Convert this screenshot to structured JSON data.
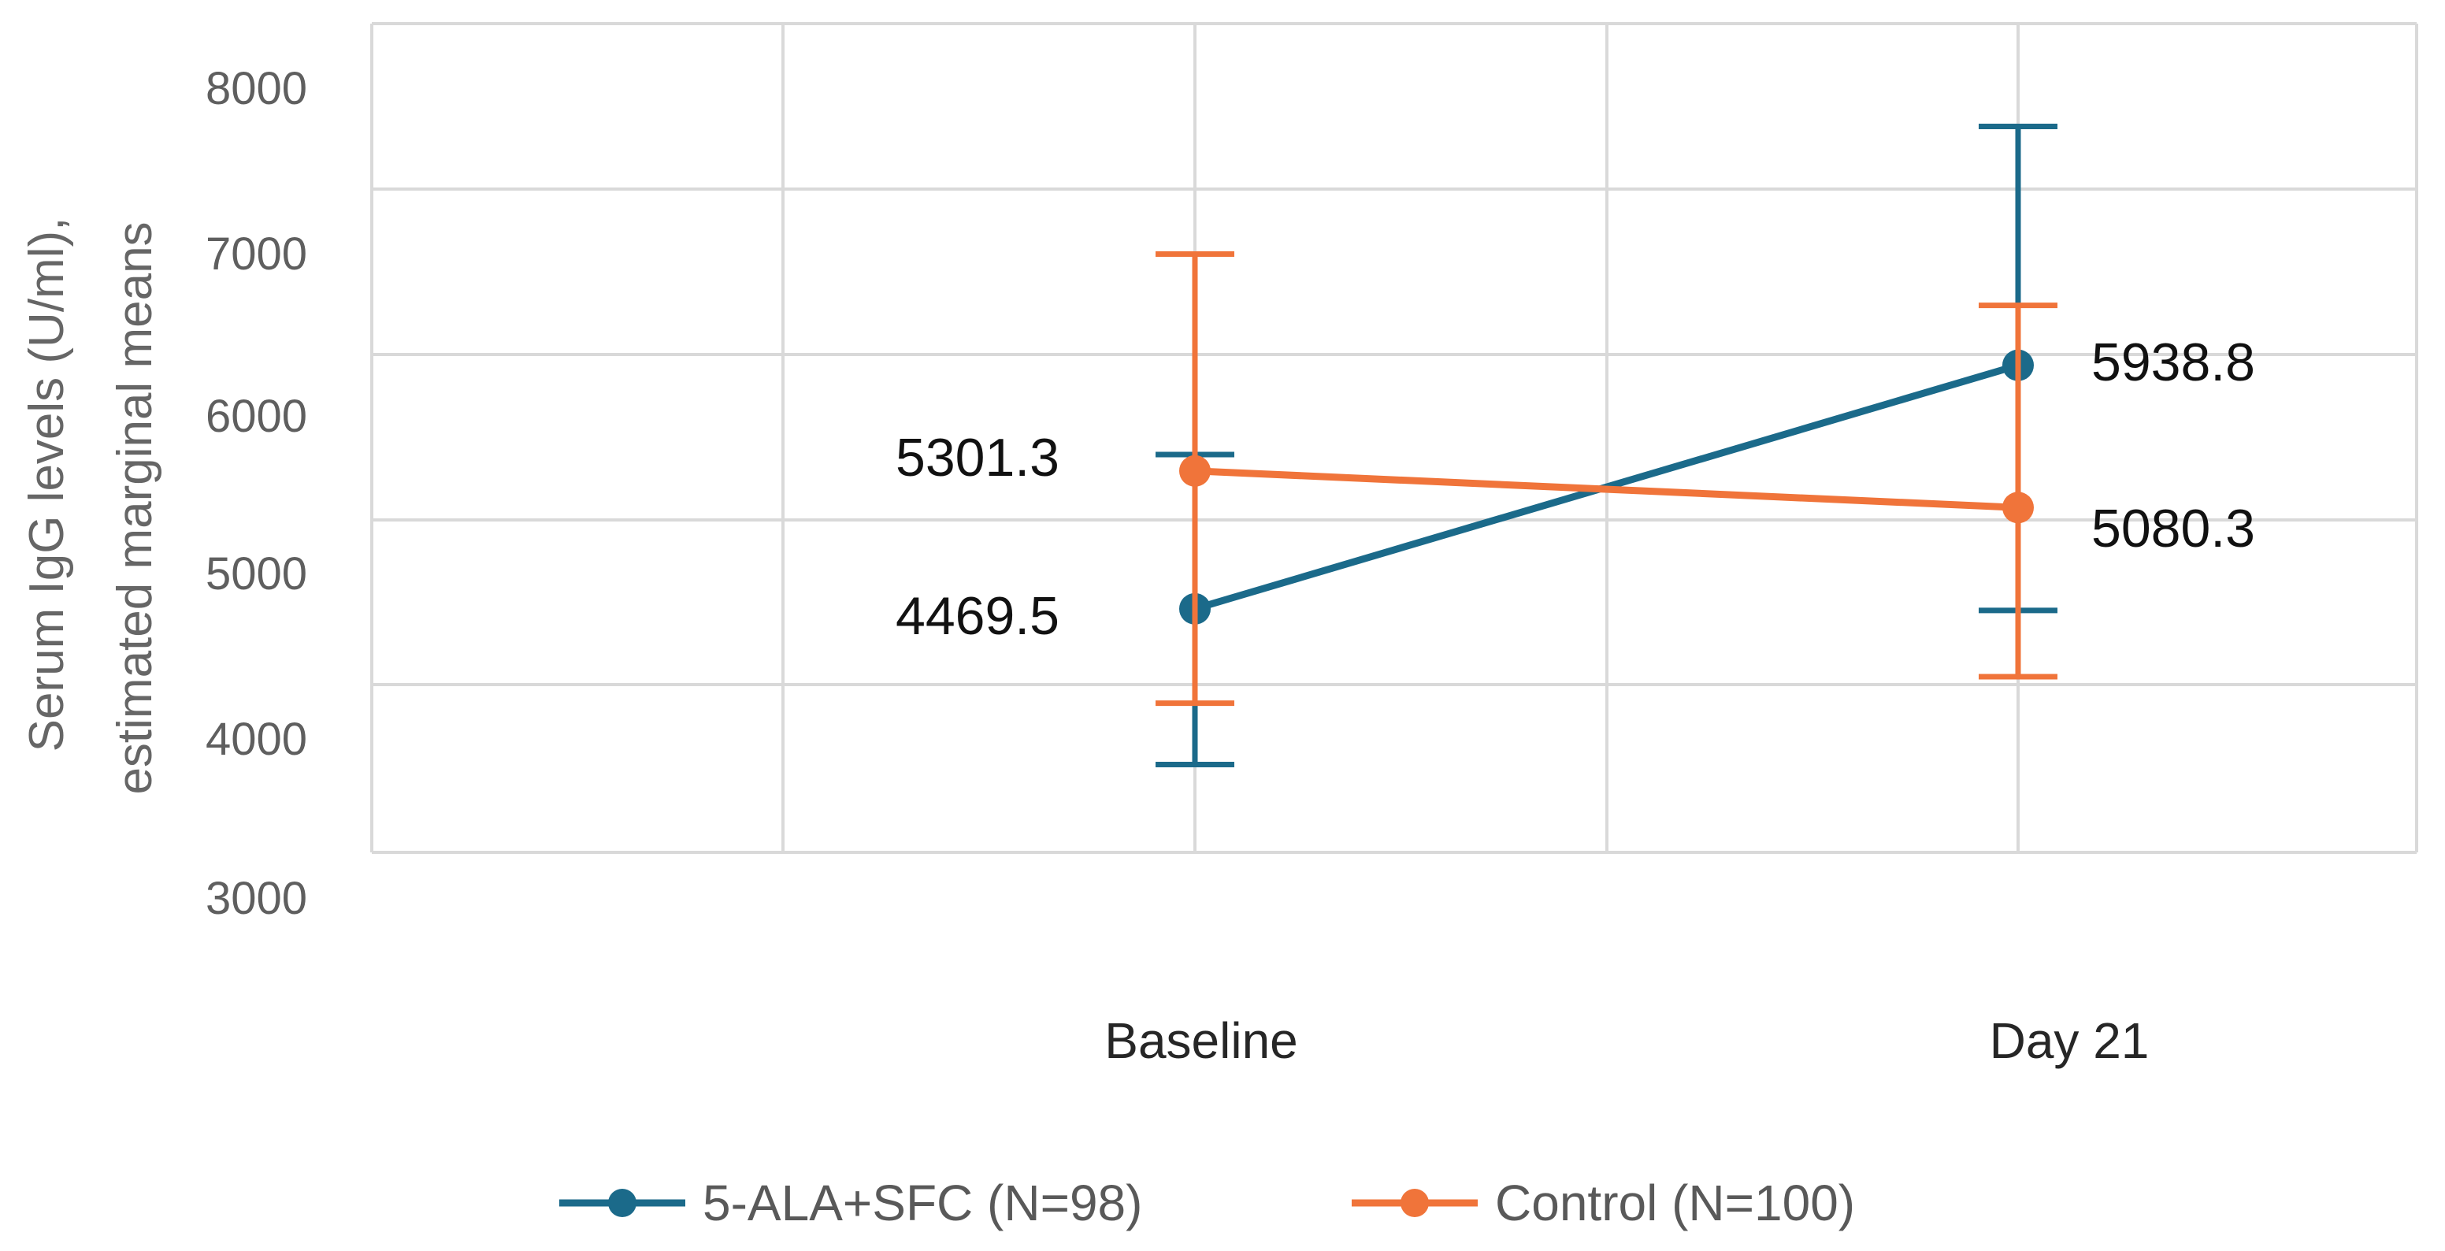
{
  "chart_data": {
    "type": "line",
    "title": "",
    "xlabel": "",
    "ylabel_lines": [
      "Serum IgG levels (U/ml),",
      "estimated marginal means"
    ],
    "categories": [
      "Baseline",
      "Day 21"
    ],
    "yticks": [
      "8000",
      "7000",
      "6000",
      "5000",
      "4000",
      "3000"
    ],
    "ylim": [
      3000,
      8000
    ],
    "grid": true,
    "legend_position": "bottom",
    "series": [
      {
        "name": "5-ALA+SFC (N=98)",
        "color": "#1b6a8a",
        "values": [
          4469.5,
          5938.8
        ],
        "labels": [
          "4469.5",
          "5938.8"
        ],
        "error_low": [
          3530,
          4460
        ],
        "error_high": [
          5400,
          7380
        ]
      },
      {
        "name": "Control (N=100)",
        "color": "#f0743a",
        "values": [
          5301.3,
          5080.3
        ],
        "labels": [
          "5301.3",
          "5080.3"
        ],
        "error_low": [
          3900,
          4060
        ],
        "error_high": [
          6610,
          6300
        ]
      }
    ]
  }
}
